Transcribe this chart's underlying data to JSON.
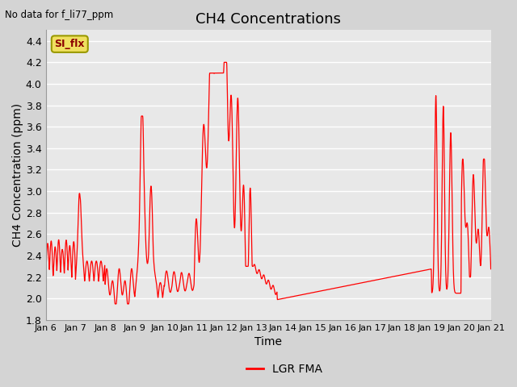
{
  "title": "CH4 Concentrations",
  "xlabel": "Time",
  "ylabel": "CH4 Concentration (ppm)",
  "top_left_text": "No data for f_li77_ppm",
  "legend_label": "LGR FMA",
  "button_label": "SI_flx",
  "ylim": [
    1.8,
    4.5
  ],
  "yticks": [
    1.8,
    2.0,
    2.2,
    2.4,
    2.6,
    2.8,
    3.0,
    3.2,
    3.4,
    3.6,
    3.8,
    4.0,
    4.2,
    4.4
  ],
  "xtick_labels": [
    "Jan 6",
    "Jan 7",
    "Jan 8",
    "Jan 9",
    "Jan 10",
    "Jan 11",
    "Jan 12",
    "Jan 13",
    "Jan 14",
    "Jan 15",
    "Jan 16",
    "Jan 17",
    "Jan 18",
    "Jan 19",
    "Jan 20",
    "Jan 21"
  ],
  "line_color": "#ff0000",
  "fig_bg_color": "#d4d4d4",
  "plot_bg_color": "#e8e8e8",
  "grid_color": "#ffffff",
  "title_fontsize": 13,
  "axis_label_fontsize": 10,
  "tick_fontsize": 9
}
